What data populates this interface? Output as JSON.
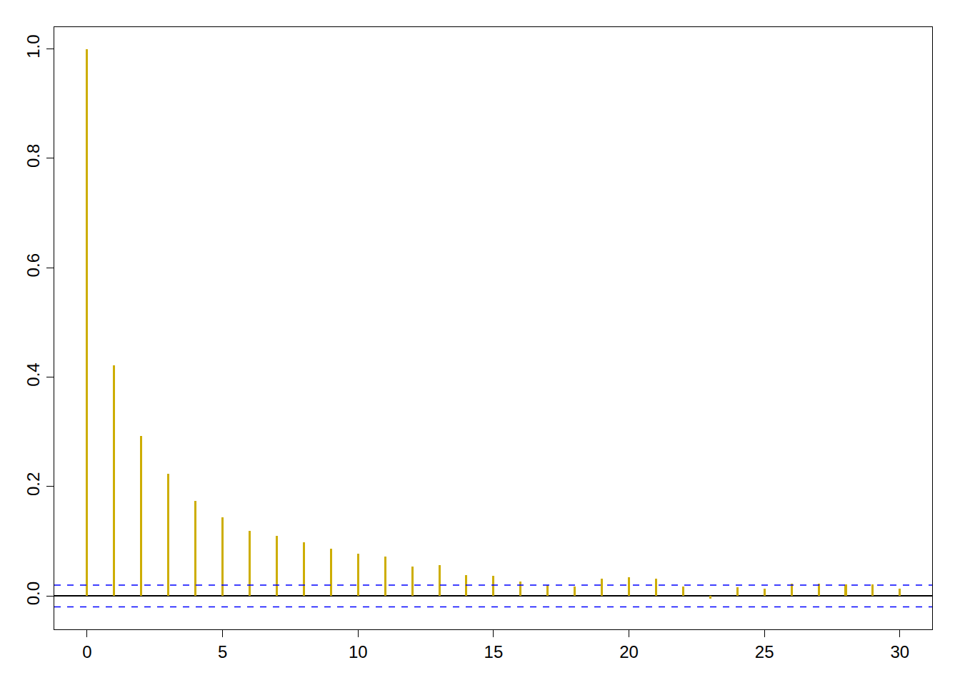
{
  "chart_data": {
    "type": "bar",
    "x": [
      0,
      1,
      2,
      3,
      4,
      5,
      6,
      7,
      8,
      9,
      10,
      11,
      12,
      13,
      14,
      15,
      16,
      17,
      18,
      19,
      20,
      21,
      22,
      23,
      24,
      25,
      26,
      27,
      28,
      29,
      30
    ],
    "values": [
      1.0,
      0.422,
      0.292,
      0.223,
      0.174,
      0.144,
      0.119,
      0.11,
      0.098,
      0.087,
      0.077,
      0.072,
      0.054,
      0.056,
      0.038,
      0.037,
      0.026,
      0.02,
      0.017,
      0.031,
      0.034,
      0.031,
      0.017,
      -0.005,
      0.016,
      0.014,
      0.023,
      0.023,
      0.021,
      0.021,
      0.014
    ],
    "color": "#CDAD00",
    "ci": [
      -0.02,
      0.02
    ],
    "xlim": [
      -1.21,
      31.19
    ],
    "ylim": [
      -0.061,
      1.04
    ],
    "xticks": [
      0,
      5,
      10,
      15,
      20,
      25,
      30
    ],
    "yticks": [
      {
        "value": 0,
        "label": "0.0"
      },
      0.2,
      0.4,
      0.6,
      0.8,
      {
        "value": 1,
        "label": "1.0"
      }
    ],
    "grid": false
  }
}
